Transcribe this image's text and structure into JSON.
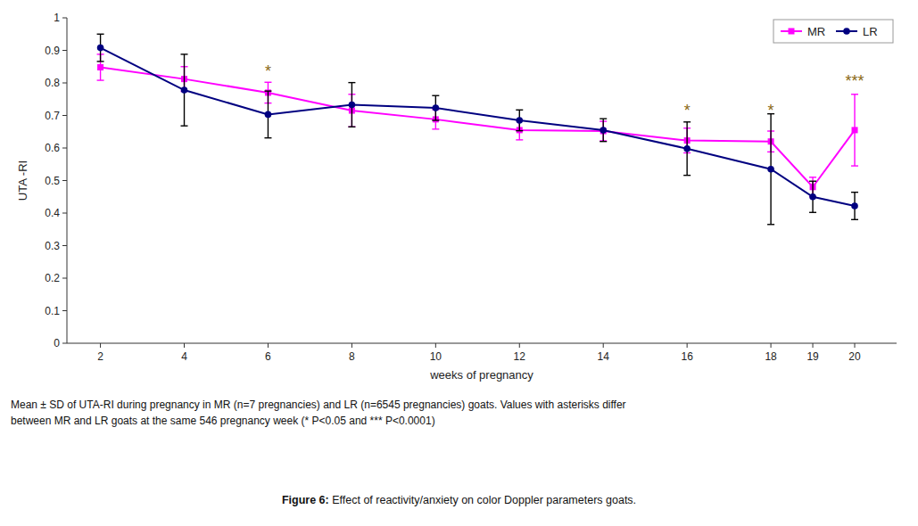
{
  "chart_data": {
    "type": "line",
    "x": [
      2,
      4,
      6,
      8,
      10,
      12,
      14,
      16,
      18,
      19,
      20
    ],
    "xlim": [
      1.2,
      21
    ],
    "xticks": [
      2,
      4,
      6,
      8,
      10,
      12,
      14,
      16,
      18,
      19,
      20
    ],
    "ylim": [
      0,
      1.0
    ],
    "yticks": [
      0,
      0.1,
      0.2,
      0.3,
      0.4,
      0.5,
      0.6,
      0.7,
      0.8,
      0.9,
      1
    ],
    "x_label": "weeks of pregnancy",
    "y_label": "UTA -RI",
    "series": [
      {
        "name": "MR",
        "color": "#FF00FF",
        "marker": "square",
        "values": [
          0.848,
          0.812,
          0.77,
          0.715,
          0.688,
          0.655,
          0.652,
          0.623,
          0.62,
          0.48,
          0.655
        ],
        "errors": [
          0.04,
          0.038,
          0.032,
          0.05,
          0.03,
          0.03,
          0.03,
          0.038,
          0.032,
          0.03,
          0.11
        ]
      },
      {
        "name": "LR",
        "color": "#000080",
        "marker": "circle",
        "values": [
          0.908,
          0.778,
          0.703,
          0.733,
          0.723,
          0.685,
          0.655,
          0.598,
          0.535,
          0.45,
          0.422
        ],
        "errors": [
          0.042,
          0.11,
          0.072,
          0.068,
          0.038,
          0.032,
          0.035,
          0.082,
          0.17,
          0.048,
          0.042
        ]
      }
    ],
    "annotations": [
      {
        "text": "*",
        "x": 6,
        "y": 0.84,
        "color": "#8B6914"
      },
      {
        "text": "*",
        "x": 16,
        "y": 0.72,
        "color": "#8B6914"
      },
      {
        "text": "*",
        "x": 18,
        "y": 0.72,
        "color": "#8B6914"
      },
      {
        "text": "***",
        "x": 20,
        "y": 0.81,
        "color": "#8B6914"
      }
    ],
    "legend": "upper right",
    "grid": false,
    "caption": "Mean ± SD of UTA-RI during pregnancy in MR (n=7 pregnancies) and LR (n=6545 pregnancies) goats. Values with asterisks differ\nbetween MR and LR goats at the same 546 pregnancy week (* P<0.05 and *** P<0.0001)",
    "figure_label": "Figure 6:",
    "figure_caption": " Effect of reactivity/anxiety on color Doppler parameters goats."
  }
}
